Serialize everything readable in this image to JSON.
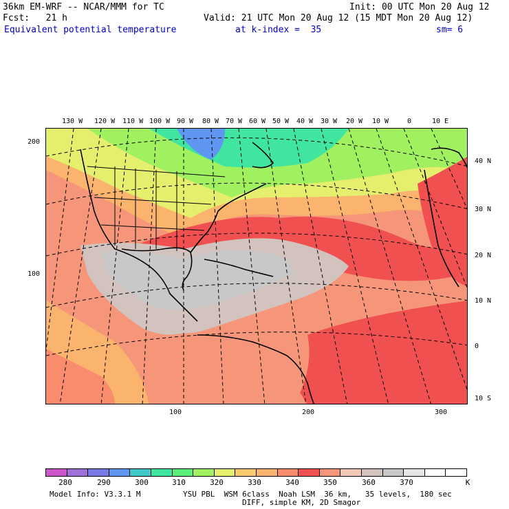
{
  "header": {
    "model": "36km EM-WRF -- NCAR/MMM for TC",
    "init": "Init: 00 UTC Mon 20 Aug 12",
    "fcst": "Fcst:   21 h",
    "valid": "Valid: 21 UTC Mon 20 Aug 12 (15 MDT Mon 20 Aug 12)",
    "field": "Equivalent potential temperature",
    "kindex": "at k-index =  35",
    "sm": "sm= 6"
  },
  "map": {
    "top_lon_labels": [
      "130 W",
      "120 W",
      "110 W",
      "100 W",
      "90 W",
      "80 W",
      "70 W",
      "60 W",
      "50 W",
      "40 W",
      "30 W",
      "20 W",
      "10 W",
      "0",
      "10 E"
    ],
    "right_lat_labels": [
      "40 N",
      "30 N",
      "20 N",
      "10 N",
      "0",
      "10 S"
    ],
    "left_y_ticks": [
      "200",
      "100"
    ],
    "bottom_x_ticks": [
      "100",
      "200",
      "300"
    ]
  },
  "colorbar": {
    "colors": [
      "#cc55cc",
      "#a070d8",
      "#7a7ae6",
      "#5f96f2",
      "#40c8c8",
      "#40e6a0",
      "#5af078",
      "#a0f060",
      "#e6ee6e",
      "#fac86e",
      "#fab46e",
      "#fa8c6e",
      "#f05050",
      "#f5967a",
      "#f0c8b4",
      "#d2c3be",
      "#c8c8c8",
      "#e6e6e6",
      "#ffffff",
      "#ffffff"
    ],
    "labels": [
      "280",
      "290",
      "300",
      "310",
      "320",
      "330",
      "340",
      "350",
      "360",
      "370",
      "K"
    ]
  },
  "footer": {
    "line1_left": "Model Info: V3.3.1 M",
    "line1_right": "YSU PBL  WSM 6class  Noah LSM  36 km,   35 levels,  180 sec",
    "line2": "DIFF, simple KM, 2D Smagor"
  }
}
